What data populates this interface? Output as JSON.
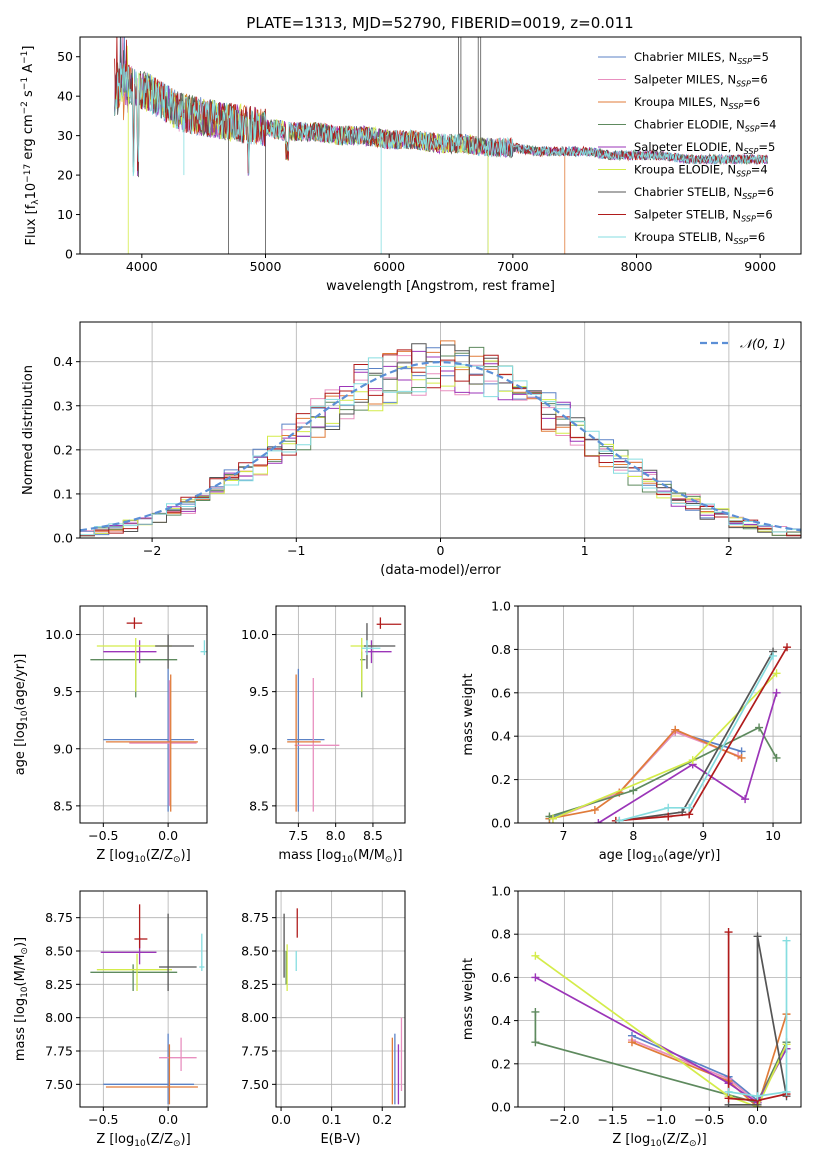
{
  "colors": {
    "chabrier_miles": "#5b82c6",
    "salpeter_miles": "#e88fbf",
    "kroupa_miles": "#e07b39",
    "chabrier_elodie": "#5e8a5e",
    "salpeter_elodie": "#9b35b8",
    "kroupa_elodie": "#d4ec4a",
    "chabrier_stelib": "#555555",
    "salpeter_stelib": "#b01c1c",
    "kroupa_stelib": "#86dde0",
    "normal_curve": "#5b8fd6"
  },
  "chart_data": [
    {
      "type": "line",
      "title": "PLATE=1313, MJD=52790, FIBERID=0019, z=0.011",
      "xlabel": "wavelength [Angstrom, rest frame]",
      "ylabel": "Flux [f_λ10^-17 erg cm^-2 s^-1 A^-1]",
      "xlim": [
        3500,
        9330
      ],
      "ylim": [
        0,
        55
      ],
      "xticks": [
        "4000",
        "5000",
        "6000",
        "7000",
        "8000",
        "9000"
      ],
      "yticks": [
        "0",
        "10",
        "20",
        "30",
        "40",
        "50"
      ],
      "legend_position": "top-right",
      "legend": [
        {
          "key": "chabrier_miles",
          "text": "Chabrier MILES, N",
          "sub": "SSP",
          "suffix": "=5"
        },
        {
          "key": "salpeter_miles",
          "text": "Salpeter MILES, N",
          "sub": "SSP",
          "suffix": "=6"
        },
        {
          "key": "kroupa_miles",
          "text": "Kroupa MILES, N",
          "sub": "SSP",
          "suffix": "=6"
        },
        {
          "key": "chabrier_elodie",
          "text": "Chabrier ELODIE, N",
          "sub": "SSP",
          "suffix": "=4"
        },
        {
          "key": "salpeter_elodie",
          "text": "Salpeter ELODIE, N",
          "sub": "SSP",
          "suffix": "=5"
        },
        {
          "key": "kroupa_elodie",
          "text": "Kroupa ELODIE, N",
          "sub": "SSP",
          "suffix": "=4"
        },
        {
          "key": "chabrier_stelib",
          "text": "Chabrier STELIB, N",
          "sub": "SSP",
          "suffix": "=6"
        },
        {
          "key": "salpeter_stelib",
          "text": "Salpeter STELIB, N",
          "sub": "SSP",
          "suffix": "=6"
        },
        {
          "key": "kroupa_stelib",
          "text": "Kroupa STELIB, N",
          "sub": "SSP",
          "suffix": "=6"
        }
      ],
      "spectrum_envelope": {
        "x": [
          3780,
          3850,
          3950,
          4050,
          4150,
          4300,
          4450,
          4600,
          4800,
          5000,
          5200,
          5400,
          5600,
          5800,
          6000,
          6200,
          6400,
          6600,
          6800,
          7000,
          7200,
          7400,
          7600,
          7800,
          8000,
          8200,
          8400,
          8600,
          8800,
          9050
        ],
        "y": [
          40,
          44,
          42,
          41,
          39,
          36,
          35,
          34,
          33,
          32,
          31,
          31,
          30,
          30,
          29,
          29,
          28,
          28,
          27,
          27,
          26,
          26,
          26,
          25,
          25,
          25,
          24,
          24,
          24,
          24
        ]
      }
    },
    {
      "type": "area",
      "xlabel": "(data-model)/error",
      "ylabel": "Normed distribution",
      "xlim": [
        -2.5,
        2.5
      ],
      "ylim": [
        0,
        0.49
      ],
      "xticks": [
        "−2",
        "−1",
        "0",
        "1",
        "2"
      ],
      "yticks": [
        "0.0",
        "0.1",
        "0.2",
        "0.3",
        "0.4"
      ],
      "legend": "𝒩(0, 1)",
      "legend_position": "top-right",
      "reference_curve": "standard normal N(0,1)",
      "histogram_bin_width": 0.1
    },
    {
      "type": "scatter",
      "xlabel": "Z [log10(Z/Z⊙)]",
      "ylabel": "age [log10(age/yr)]",
      "xlim": [
        -0.68,
        0.3
      ],
      "ylim": [
        8.35,
        10.25
      ],
      "xticks": [
        "−0.5",
        "0.0"
      ],
      "yticks": [
        "8.5",
        "9.0",
        "9.5",
        "10.0"
      ],
      "points": [
        {
          "s": "chabrier_miles",
          "x": 0.0,
          "xe": [
            -0.5,
            0.2
          ],
          "y": 9.08,
          "ye": [
            8.45,
            9.7
          ]
        },
        {
          "s": "salpeter_miles",
          "x": 0.01,
          "xe": [
            -0.3,
            0.22
          ],
          "y": 9.05,
          "ye": [
            8.5,
            9.6
          ]
        },
        {
          "s": "kroupa_miles",
          "x": 0.02,
          "xe": [
            -0.48,
            0.23
          ],
          "y": 9.06,
          "ye": [
            8.45,
            9.65
          ]
        },
        {
          "s": "chabrier_elodie",
          "x": -0.25,
          "xe": [
            -0.6,
            0.07
          ],
          "y": 9.78,
          "ye": [
            9.45,
            9.85
          ]
        },
        {
          "s": "salpeter_elodie",
          "x": -0.22,
          "xe": [
            -0.5,
            -0.09
          ],
          "y": 9.85,
          "ye": [
            9.75,
            9.95
          ]
        },
        {
          "s": "kroupa_elodie",
          "x": -0.25,
          "xe": [
            -0.55,
            0.03
          ],
          "y": 9.9,
          "ye": [
            9.5,
            9.97
          ]
        },
        {
          "s": "chabrier_stelib",
          "x": 0.0,
          "xe": [
            -0.1,
            0.2
          ],
          "y": 9.9,
          "ye": [
            9.7,
            10.0
          ]
        },
        {
          "s": "salpeter_stelib",
          "x": -0.26,
          "xe": [
            -0.32,
            -0.2
          ],
          "y": 10.1,
          "ye": [
            10.05,
            10.15
          ]
        },
        {
          "s": "kroupa_stelib",
          "x": 0.28,
          "xe": [
            0.25,
            0.31
          ],
          "y": 9.85,
          "ye": [
            9.82,
            9.95
          ]
        }
      ]
    },
    {
      "type": "scatter",
      "xlabel": "mass [log10(M/M⊙)]",
      "ylabel": "",
      "xlim": [
        7.2,
        8.93
      ],
      "ylim": [
        8.35,
        10.25
      ],
      "xticks": [
        "7.5",
        "8.0",
        "8.5"
      ],
      "yticks": [
        "8.5",
        "9.0",
        "9.5",
        "10.0"
      ],
      "points": [
        {
          "s": "chabrier_miles",
          "x": 7.5,
          "xe": [
            7.35,
            7.85
          ],
          "y": 9.08,
          "ye": [
            8.45,
            9.7
          ]
        },
        {
          "s": "salpeter_miles",
          "x": 7.7,
          "xe": [
            7.45,
            8.05
          ],
          "y": 9.03,
          "ye": [
            8.45,
            9.62
          ]
        },
        {
          "s": "kroupa_miles",
          "x": 7.47,
          "xe": [
            7.35,
            7.8
          ],
          "y": 9.06,
          "ye": [
            8.45,
            9.65
          ]
        },
        {
          "s": "chabrier_elodie",
          "x": 8.35,
          "xe": [
            8.33,
            8.4
          ],
          "y": 9.78,
          "ye": [
            9.45,
            9.85
          ]
        },
        {
          "s": "salpeter_elodie",
          "x": 8.48,
          "xe": [
            8.4,
            8.75
          ],
          "y": 9.85,
          "ye": [
            9.75,
            9.95
          ]
        },
        {
          "s": "kroupa_elodie",
          "x": 8.35,
          "xe": [
            8.2,
            8.55
          ],
          "y": 9.9,
          "ye": [
            9.5,
            9.97
          ]
        },
        {
          "s": "chabrier_stelib",
          "x": 8.42,
          "xe": [
            8.38,
            8.8
          ],
          "y": 9.9,
          "ye": [
            9.7,
            10.1
          ]
        },
        {
          "s": "salpeter_stelib",
          "x": 8.6,
          "xe": [
            8.55,
            8.88
          ],
          "y": 10.09,
          "ye": [
            10.05,
            10.15
          ]
        },
        {
          "s": "kroupa_stelib",
          "x": 8.42,
          "xe": [
            8.35,
            8.6
          ],
          "y": 9.88,
          "ye": [
            9.82,
            9.95
          ]
        }
      ]
    },
    {
      "type": "line",
      "xlabel": "age [log10(age/yr)]",
      "ylabel": "mass weight",
      "xlim": [
        6.35,
        10.4
      ],
      "ylim": [
        0,
        1
      ],
      "xticks": [
        "7",
        "8",
        "9",
        "10"
      ],
      "yticks": [
        "0.0",
        "0.2",
        "0.4",
        "0.6",
        "0.8",
        "1.0"
      ],
      "series": [
        {
          "s": "chabrier_miles",
          "x": [
            6.8,
            7.8,
            8.6,
            9.55
          ],
          "y": [
            0.02,
            0.14,
            0.42,
            0.33
          ]
        },
        {
          "s": "salpeter_miles",
          "x": [
            6.85,
            7.8,
            8.6,
            9.5
          ],
          "y": [
            0.02,
            0.14,
            0.42,
            0.31
          ]
        },
        {
          "s": "kroupa_miles",
          "x": [
            6.8,
            7.45,
            7.8,
            8.6,
            9.55
          ],
          "y": [
            0.02,
            0.06,
            0.14,
            0.43,
            0.3
          ]
        },
        {
          "s": "chabrier_elodie",
          "x": [
            6.8,
            8.0,
            9.8,
            10.05
          ],
          "y": [
            0.03,
            0.15,
            0.44,
            0.3
          ]
        },
        {
          "s": "salpeter_elodie",
          "x": [
            7.5,
            8.85,
            9.6,
            10.05
          ],
          "y": [
            0.0,
            0.27,
            0.11,
            0.6
          ]
        },
        {
          "s": "kroupa_elodie",
          "x": [
            6.85,
            8.85,
            10.05
          ],
          "y": [
            0.02,
            0.29,
            0.69
          ]
        },
        {
          "s": "chabrier_stelib",
          "x": [
            7.8,
            8.7,
            10.0
          ],
          "y": [
            0.01,
            0.05,
            0.79
          ]
        },
        {
          "s": "salpeter_stelib",
          "x": [
            7.75,
            8.5,
            8.8,
            10.2
          ],
          "y": [
            0.01,
            0.03,
            0.04,
            0.81
          ]
        },
        {
          "s": "kroupa_stelib",
          "x": [
            7.8,
            8.5,
            8.8,
            10.0
          ],
          "y": [
            0.01,
            0.07,
            0.07,
            0.77
          ]
        }
      ]
    },
    {
      "type": "scatter",
      "xlabel": "Z [log10(Z/Z⊙)]",
      "ylabel": "mass [log10(M/M⊙)]",
      "xlim": [
        -0.68,
        0.3
      ],
      "ylim": [
        7.33,
        8.95
      ],
      "xticks": [
        "−0.5",
        "0.0"
      ],
      "yticks": [
        "7.50",
        "7.75",
        "8.00",
        "8.25",
        "8.50",
        "8.75"
      ],
      "points": [
        {
          "s": "chabrier_miles",
          "x": 0.0,
          "xe": [
            -0.5,
            0.2
          ],
          "y": 7.5,
          "ye": [
            7.35,
            7.88
          ]
        },
        {
          "s": "salpeter_miles",
          "x": 0.1,
          "xe": [
            -0.07,
            0.22
          ],
          "y": 7.7,
          "ye": [
            7.6,
            7.85
          ]
        },
        {
          "s": "kroupa_miles",
          "x": 0.01,
          "xe": [
            -0.48,
            0.23
          ],
          "y": 7.48,
          "ye": [
            7.35,
            7.8
          ]
        },
        {
          "s": "chabrier_elodie",
          "x": -0.27,
          "xe": [
            -0.6,
            0.07
          ],
          "y": 8.34,
          "ye": [
            8.2,
            8.4
          ]
        },
        {
          "s": "salpeter_elodie",
          "x": -0.22,
          "xe": [
            -0.52,
            -0.09
          ],
          "y": 8.49,
          "ye": [
            8.4,
            8.6
          ]
        },
        {
          "s": "kroupa_elodie",
          "x": -0.24,
          "xe": [
            -0.55,
            0.03
          ],
          "y": 8.36,
          "ye": [
            8.2,
            8.48
          ]
        },
        {
          "s": "chabrier_stelib",
          "x": 0.0,
          "xe": [
            -0.07,
            0.22
          ],
          "y": 8.38,
          "ye": [
            8.2,
            8.78
          ]
        },
        {
          "s": "salpeter_stelib",
          "x": -0.22,
          "xe": [
            -0.26,
            -0.16
          ],
          "y": 8.59,
          "ye": [
            8.52,
            8.85
          ]
        },
        {
          "s": "kroupa_stelib",
          "x": 0.26,
          "xe": [
            0.24,
            0.28
          ],
          "y": 8.38,
          "ye": [
            8.35,
            8.63
          ]
        }
      ]
    },
    {
      "type": "scatter",
      "xlabel": "E(B-V)",
      "ylabel": "",
      "xlim": [
        -0.01,
        0.245
      ],
      "ylim": [
        7.33,
        8.95
      ],
      "xticks": [
        "0.0",
        "0.1",
        "0.2"
      ],
      "yticks": [
        "7.50",
        "7.75",
        "8.00",
        "8.25",
        "8.50",
        "8.75"
      ],
      "points": [
        {
          "s": "chabrier_miles",
          "x": 0.225,
          "ye": [
            7.35,
            7.88
          ]
        },
        {
          "s": "salpeter_miles",
          "x": 0.238,
          "ye": [
            7.45,
            8.0
          ]
        },
        {
          "s": "kroupa_miles",
          "x": 0.22,
          "ye": [
            7.35,
            7.85
          ]
        },
        {
          "s": "chabrier_elodie",
          "x": 0.01,
          "ye": [
            8.25,
            8.5
          ]
        },
        {
          "s": "salpeter_elodie",
          "x": 0.232,
          "ye": [
            7.35,
            7.8
          ]
        },
        {
          "s": "kroupa_elodie",
          "x": 0.012,
          "ye": [
            8.2,
            8.55
          ]
        },
        {
          "s": "chabrier_stelib",
          "x": 0.006,
          "ye": [
            8.3,
            8.78
          ]
        },
        {
          "s": "salpeter_stelib",
          "x": 0.032,
          "ye": [
            8.6,
            8.82
          ]
        },
        {
          "s": "kroupa_stelib",
          "x": 0.03,
          "ye": [
            8.35,
            8.5
          ]
        }
      ]
    },
    {
      "type": "line",
      "xlabel": "Z [log10(Z/Z⊙)]",
      "ylabel": "mass weight",
      "xlim": [
        -2.48,
        0.45
      ],
      "ylim": [
        0,
        1
      ],
      "xticks": [
        "−2.0",
        "−1.5",
        "−1.0",
        "−0.5",
        "0.0"
      ],
      "yticks": [
        "0.0",
        "0.2",
        "0.4",
        "0.6",
        "0.8",
        "1.0"
      ],
      "series": [
        {
          "s": "chabrier_miles",
          "x": [
            -1.3,
            -0.3,
            0.0,
            0.3
          ],
          "y": [
            0.33,
            0.14,
            0.03,
            0.27
          ]
        },
        {
          "s": "salpeter_miles",
          "x": [
            -1.3,
            -0.3,
            0.0,
            0.3
          ],
          "y": [
            0.31,
            0.13,
            0.02,
            0.3
          ]
        },
        {
          "s": "kroupa_miles",
          "x": [
            -1.3,
            -0.3,
            0.0,
            0.3
          ],
          "y": [
            0.3,
            0.12,
            0.0,
            0.43
          ]
        },
        {
          "s": "chabrier_elodie",
          "x": [
            -2.3,
            -2.3,
            0.0,
            0.3
          ],
          "y": [
            0.44,
            0.3,
            0.02,
            0.3
          ]
        },
        {
          "s": "salpeter_elodie",
          "x": [
            -2.3,
            -0.3,
            0.0,
            0.3
          ],
          "y": [
            0.6,
            0.11,
            0.02,
            0.27
          ]
        },
        {
          "s": "kroupa_elodie",
          "x": [
            -2.3,
            -0.3,
            0.0,
            0.3
          ],
          "y": [
            0.7,
            0.05,
            0.0,
            0.29
          ]
        },
        {
          "s": "chabrier_stelib",
          "x": [
            -0.3,
            0.0,
            0.0,
            0.3
          ],
          "y": [
            0.01,
            0.01,
            0.79,
            0.05
          ]
        },
        {
          "s": "salpeter_stelib",
          "x": [
            -0.3,
            -0.3,
            0.0,
            0.3
          ],
          "y": [
            0.81,
            0.04,
            0.03,
            0.06
          ]
        },
        {
          "s": "kroupa_stelib",
          "x": [
            -0.3,
            0.0,
            0.3,
            0.3
          ],
          "y": [
            0.07,
            0.05,
            0.07,
            0.77
          ]
        }
      ]
    }
  ]
}
